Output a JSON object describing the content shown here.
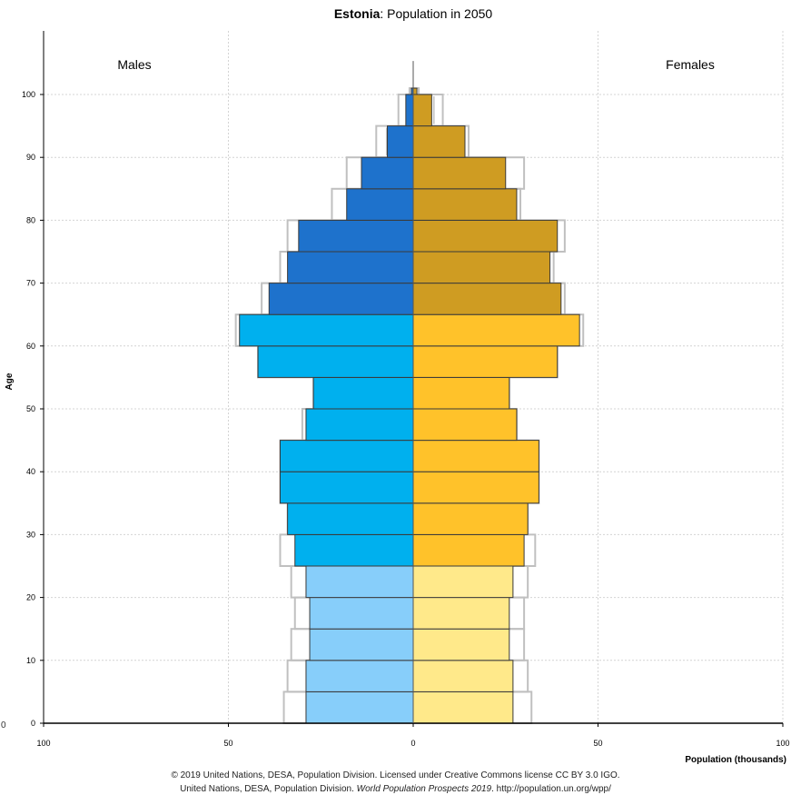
{
  "chart_data": {
    "type": "bar",
    "subtype": "population-pyramid",
    "title_bold": "Estonia",
    "title_rest": ": Population in 2050",
    "ylabel": "Age",
    "xlabel": "Population (thousands)",
    "left_label": "Males",
    "right_label": "Females",
    "xlim": [
      -100,
      100
    ],
    "ylim": [
      0,
      101
    ],
    "x_tick_values": [
      -100,
      -50,
      0,
      50,
      100
    ],
    "x_tick_labels": [
      "100",
      "50",
      "0",
      "50",
      "100"
    ],
    "y_tick_values": [
      0,
      10,
      20,
      30,
      40,
      50,
      60,
      70,
      80,
      90,
      100
    ],
    "y_tick_labels": [
      "0",
      "10",
      "20",
      "30",
      "40",
      "50",
      "60",
      "70",
      "80",
      "90",
      "100"
    ],
    "grid": true,
    "age_group_starts": [
      0,
      5,
      10,
      15,
      20,
      25,
      30,
      35,
      40,
      45,
      50,
      55,
      60,
      65,
      70,
      75,
      80,
      85,
      90,
      95,
      100
    ],
    "age_group_span": 5,
    "series": [
      {
        "gender": "male",
        "values": [
          29,
          29,
          28,
          28,
          29,
          32,
          34,
          36,
          36,
          29,
          27,
          42,
          47,
          39,
          34,
          31,
          18,
          14,
          7,
          2,
          0.5
        ],
        "outline_values": [
          35,
          34,
          33,
          32,
          33,
          36,
          34,
          36,
          36,
          30,
          27,
          42,
          48,
          41,
          36,
          34,
          22,
          18,
          10,
          4,
          1
        ]
      },
      {
        "gender": "female",
        "values": [
          27,
          27,
          26,
          26,
          27,
          30,
          31,
          34,
          34,
          28,
          26,
          39,
          45,
          40,
          37,
          39,
          28,
          25,
          14,
          5,
          1
        ],
        "outline_values": [
          32,
          31,
          30,
          30,
          31,
          33,
          31,
          34,
          34,
          28,
          26,
          39,
          46,
          41,
          38,
          41,
          29,
          30,
          15,
          8,
          1.5
        ]
      }
    ],
    "colors": {
      "male_young": "#87cefa",
      "male_adult": "#00b0ee",
      "male_old": "#1e72cc",
      "female_young": "#ffe98a",
      "female_adult": "#ffc22a",
      "female_old": "#cf9c22",
      "outline": "#c0c0c0",
      "bar_edge": "#3a3a3a",
      "grid": "#d4d4d4"
    },
    "credit_line1": "© 2019 United Nations, DESA, Population Division. Licensed under Creative Commons license CC BY 3.0 IGO.",
    "credit_line2_pre": "United Nations, DESA, Population Division. ",
    "credit_line2_italic": "World Population Prospects 2019",
    "credit_line2_post": ". http://population.un.org/wpp/"
  },
  "stray_left_label": "0"
}
